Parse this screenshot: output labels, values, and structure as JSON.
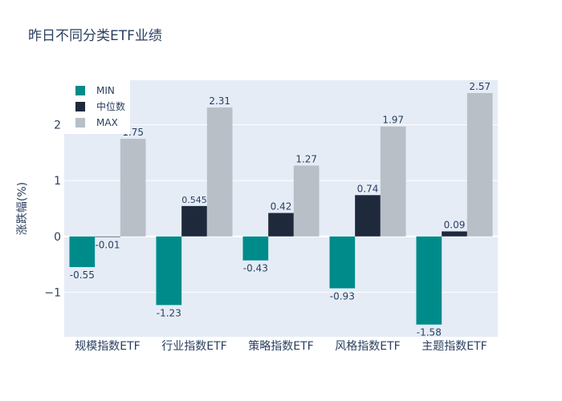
{
  "chart_data": {
    "type": "bar",
    "title": "昨日不同分类ETF业绩",
    "xlabel": "",
    "ylabel": "涨跌幅(%)",
    "categories": [
      "规模指数ETF",
      "行业指数ETF",
      "策略指数ETF",
      "风格指数ETF",
      "主题指数ETF"
    ],
    "series": [
      {
        "name": "MIN",
        "color": "#008b8b",
        "values": [
          -0.55,
          -1.23,
          -0.43,
          -0.93,
          -1.58
        ],
        "labels": [
          "-0.55",
          "-1.23",
          "-0.43",
          "-0.93",
          "-1.58"
        ]
      },
      {
        "name": "中位数",
        "color": "#1e293b",
        "values": [
          -0.01,
          0.545,
          0.42,
          0.74,
          0.09
        ],
        "labels": [
          "-0.01",
          "0.545",
          "0.42",
          "0.74",
          "0.09"
        ]
      },
      {
        "name": "MAX",
        "color": "#b8bfc7",
        "values": [
          1.75,
          2.31,
          1.27,
          1.97,
          2.57
        ],
        "labels": [
          "1.75",
          "2.31",
          "1.27",
          "1.97",
          "2.57"
        ]
      }
    ],
    "ylim": [
      -1.8,
      2.8
    ],
    "yticks": [
      -1,
      0,
      1,
      2
    ],
    "ytick_labels": [
      "−1",
      "0",
      "1",
      "2"
    ],
    "grid": true,
    "legend_position": "top-left",
    "plot_bgcolor": "#e5ecf6"
  }
}
